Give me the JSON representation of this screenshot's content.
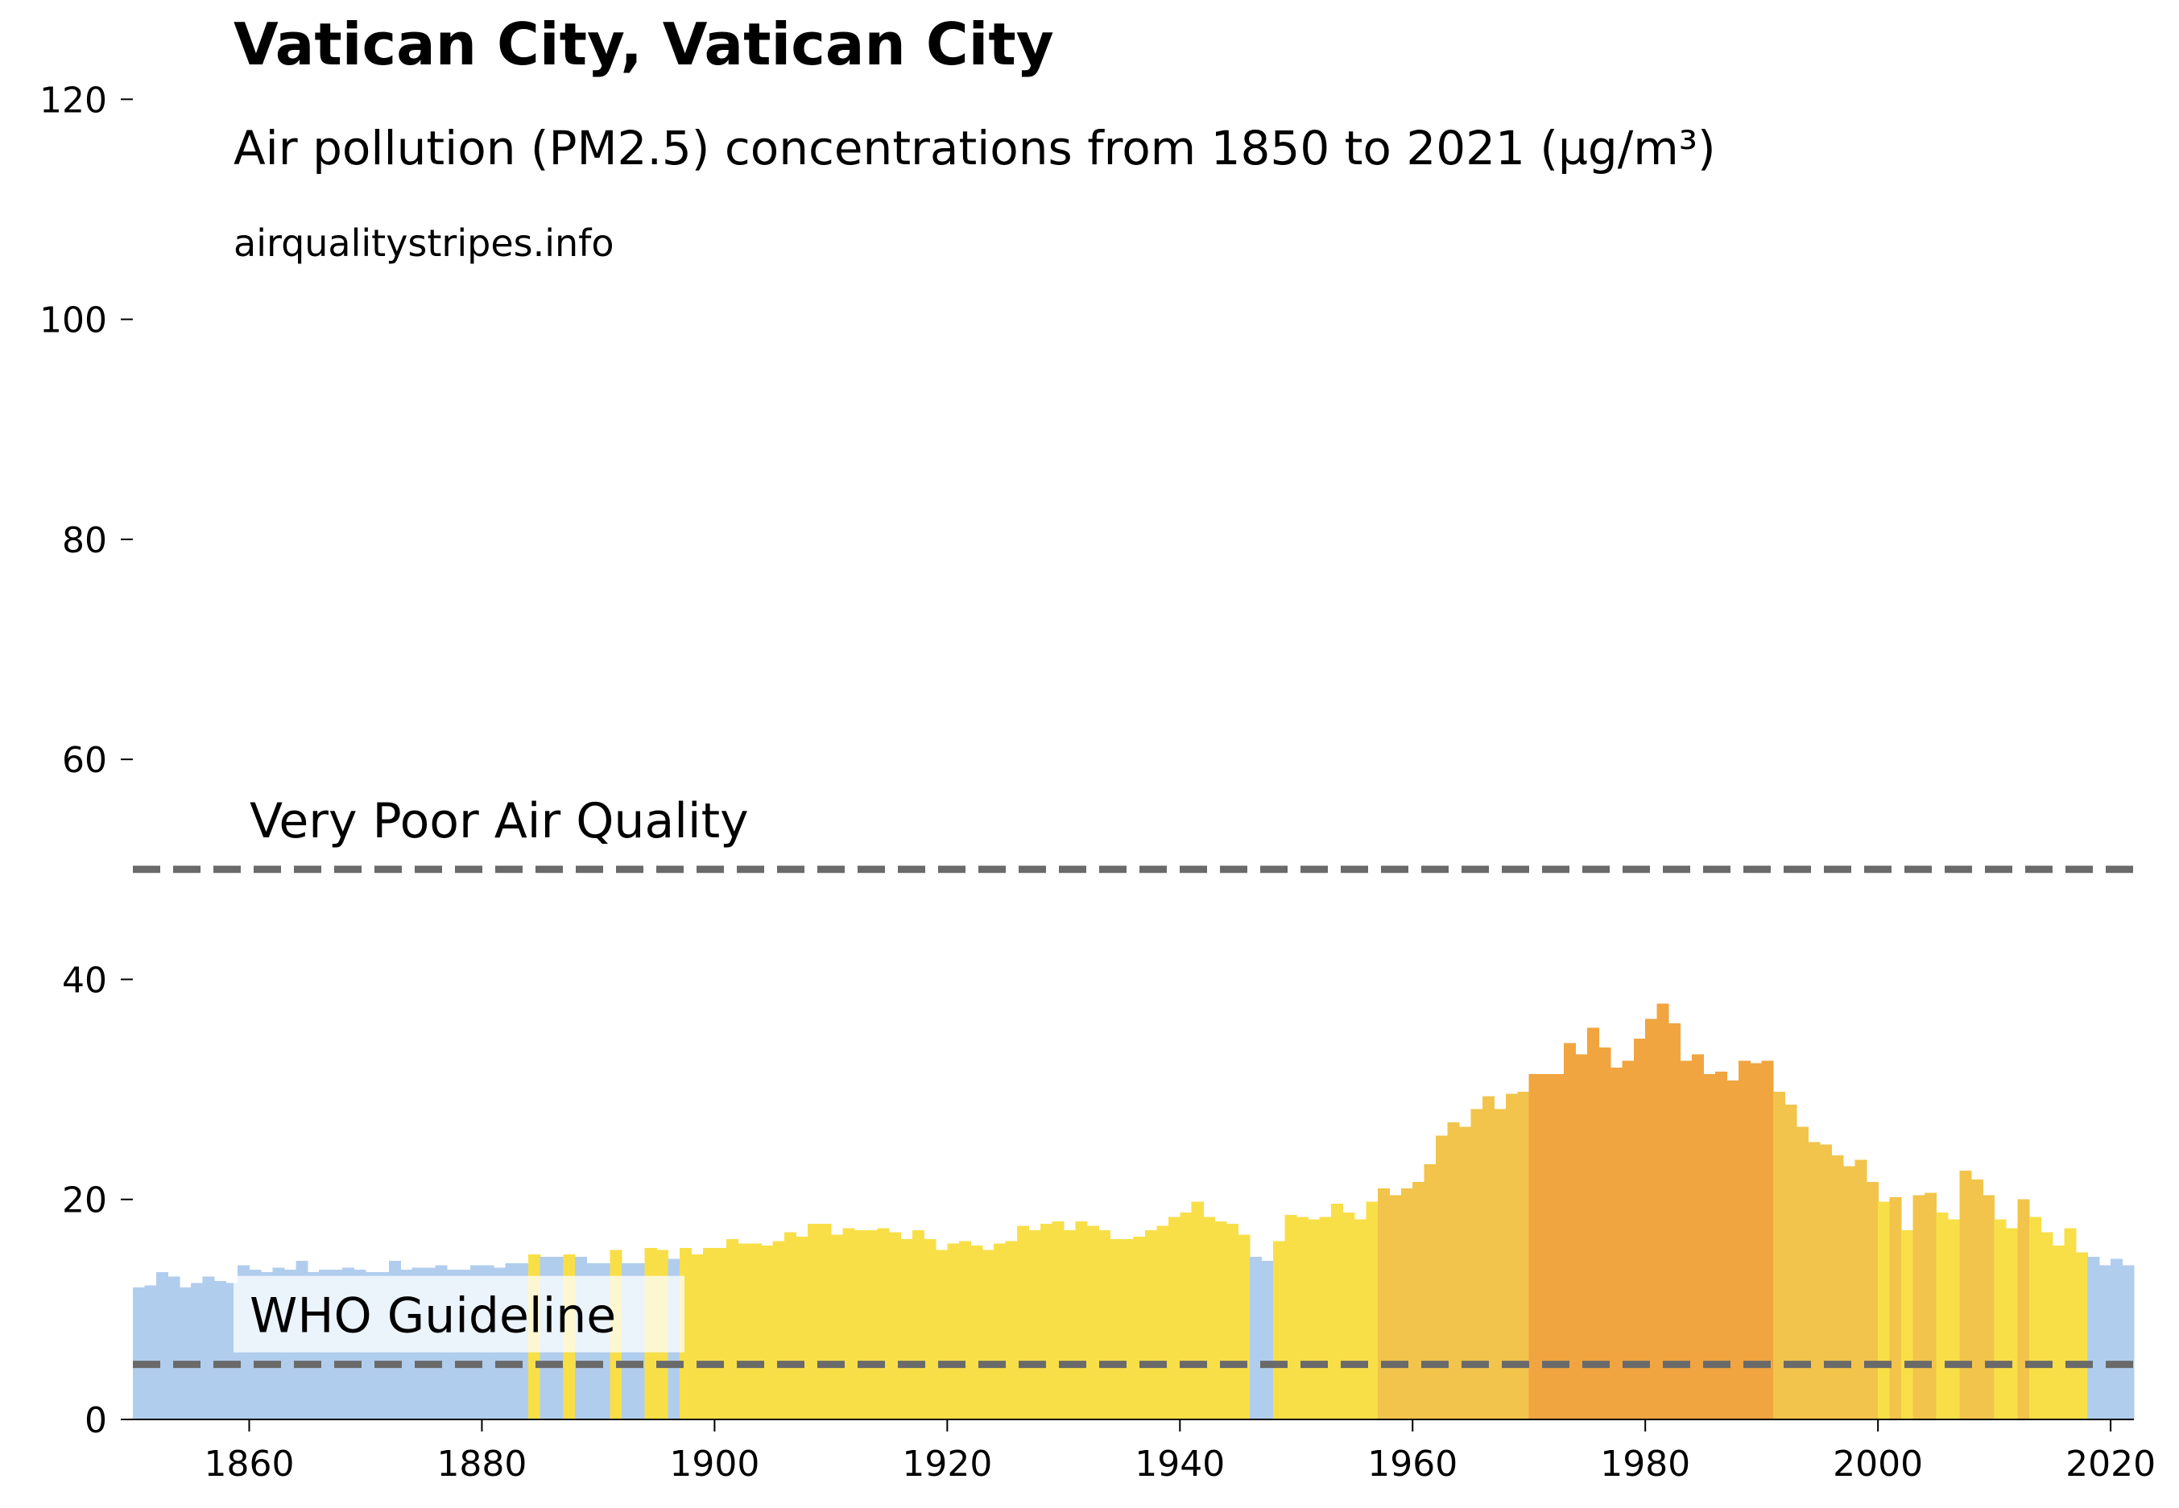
{
  "chart_data": {
    "type": "bar",
    "title": "Vatican City, Vatican City",
    "subtitle": "Air pollution (PM2.5) concentrations from 1850 to 2021 (µg/m³)",
    "source": "airqualitystripes.info",
    "x_start": 1850,
    "x_end": 2021,
    "xlim": [
      1850,
      2022
    ],
    "ylim": [
      0,
      125
    ],
    "y_ticks": [
      0,
      20,
      40,
      60,
      80,
      100,
      120
    ],
    "x_ticks": [
      1860,
      1880,
      1900,
      1920,
      1940,
      1960,
      1980,
      2000,
      2020
    ],
    "values": [
      12,
      12.2,
      13.4,
      13,
      12,
      12.4,
      13,
      12.6,
      12.4,
      14,
      13.6,
      13.4,
      13.8,
      13.6,
      14.4,
      13.4,
      13.6,
      13.6,
      13.8,
      13.6,
      13.4,
      13.4,
      14.4,
      13.6,
      13.8,
      13.8,
      14,
      13.6,
      13.6,
      14,
      14,
      13.8,
      14.2,
      14.2,
      15,
      14.8,
      14.8,
      15,
      14.8,
      14.2,
      14.2,
      15.4,
      14.2,
      14.2,
      15.6,
      15.4,
      14.6,
      15.6,
      15,
      15.6,
      15.6,
      16.4,
      16,
      16,
      15.8,
      16.2,
      17,
      16.6,
      17.8,
      17.8,
      16.8,
      17.4,
      17.2,
      17.2,
      17.4,
      17,
      16.4,
      17.2,
      16.4,
      15.4,
      16,
      16.2,
      15.8,
      15.4,
      16,
      16.2,
      17.6,
      17.2,
      17.8,
      18,
      17.2,
      18,
      17.6,
      17.2,
      16.4,
      16.4,
      16.6,
      17.2,
      17.6,
      18.4,
      18.8,
      19.8,
      18.4,
      18,
      17.8,
      16.8,
      14.8,
      14.4,
      16.2,
      18.6,
      18.4,
      18.2,
      18.4,
      19.6,
      18.8,
      18.2,
      19.8,
      21,
      20.4,
      21,
      21.6,
      23.2,
      25.8,
      27,
      26.6,
      28.2,
      29.4,
      28.2,
      29.6,
      29.8,
      31.4,
      31.4,
      31.4,
      34.2,
      33.2,
      35.6,
      33.8,
      32,
      32.6,
      34.6,
      36.4,
      37.8,
      36,
      32.6,
      33.2,
      31.4,
      31.6,
      30.8,
      32.6,
      32.4,
      32.6,
      29.8,
      28.6,
      26.6,
      25.2,
      25,
      24,
      23,
      23.6,
      21.6,
      19.8,
      20.2,
      17.2,
      20.4,
      20.6,
      18.8,
      18.2,
      22.6,
      21.8,
      20.4,
      18.2,
      17.4,
      20,
      18.4,
      17,
      15.8,
      17.4,
      15.2,
      14.8,
      14,
      14.6,
      14
    ],
    "thresholds": [
      {
        "label": "WHO Guideline",
        "value": 5
      },
      {
        "label": "Very Poor Air Quality",
        "value": 50
      }
    ],
    "colors": {
      "low": "#b1cdee",
      "moderate": "#f8df48",
      "elevated": "#f2c44b",
      "high": "#f0a540",
      "threshold_line": "#6a6a6a",
      "axis": "#000000"
    }
  }
}
